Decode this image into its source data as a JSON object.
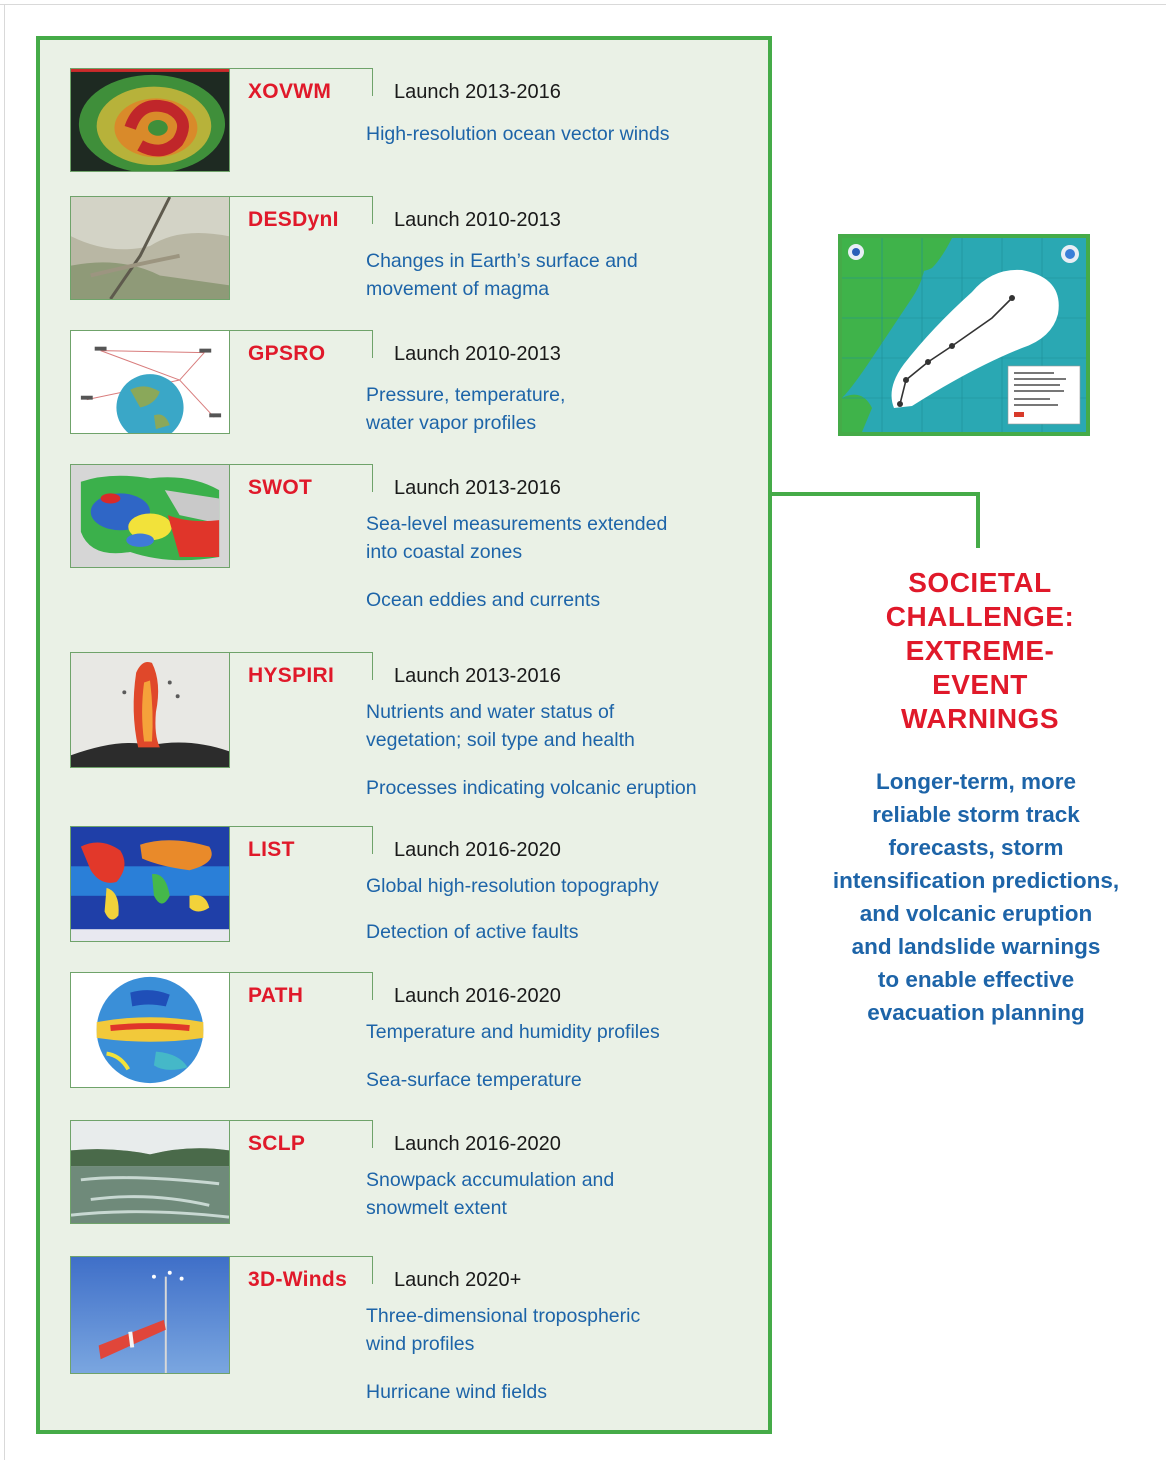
{
  "missions": [
    {
      "name": "XOVWM",
      "launch": "Launch 2013-2016",
      "descriptions": [
        [
          "High-resolution ocean vector winds"
        ]
      ],
      "image": "ocean-winds-satellite-image"
    },
    {
      "name": "DESDynI",
      "launch": "Launch 2010-2013",
      "descriptions": [
        [
          "Changes in Earth’s surface and",
          "movement of magma"
        ]
      ],
      "image": "fault-landscape-photo"
    },
    {
      "name": "GPSRO",
      "launch": "Launch 2010-2013",
      "descriptions": [
        [
          "Pressure, temperature,",
          "water vapor profiles"
        ]
      ],
      "image": "gps-satellites-globe-diagram"
    },
    {
      "name": "SWOT",
      "launch": "Launch 2013-2016",
      "descriptions": [
        [
          "Sea-level measurements extended",
          "into coastal zones"
        ],
        [
          "Ocean eddies and currents"
        ]
      ],
      "image": "sea-level-map"
    },
    {
      "name": "HYSPIRI",
      "launch": "Launch 2013-2016",
      "descriptions": [
        [
          "Nutrients and water status of",
          "vegetation; soil type and health"
        ],
        [
          "Processes indicating volcanic eruption"
        ]
      ],
      "image": "volcanic-eruption-photo"
    },
    {
      "name": "LIST",
      "launch": "Launch 2016-2020",
      "descriptions": [
        [
          "Global high-resolution topography"
        ],
        [
          "Detection of active faults"
        ]
      ],
      "image": "global-topography-map"
    },
    {
      "name": "PATH",
      "launch": "Launch 2016-2020",
      "descriptions": [
        [
          "Temperature and humidity profiles"
        ],
        [
          "Sea-surface temperature"
        ]
      ],
      "image": "sea-surface-temperature-globe"
    },
    {
      "name": "SCLP",
      "launch": "Launch 2016-2020",
      "descriptions": [
        [
          "Snowpack accumulation and",
          "snowmelt extent"
        ]
      ],
      "image": "snowmelt-river-photo"
    },
    {
      "name": "3D-Winds",
      "launch": "Launch 2020+",
      "descriptions": [
        [
          "Three-dimensional tropospheric",
          "wind profiles"
        ],
        [
          "Hurricane wind fields"
        ]
      ],
      "image": "windsock-photo"
    }
  ],
  "challenge": {
    "title_lines": [
      "SOCIETAL",
      "CHALLENGE:",
      "EXTREME-",
      "EVENT",
      "WARNINGS"
    ],
    "benefit_lines": [
      "Longer-term, more",
      "reliable storm track",
      "forecasts, storm",
      "intensification predictions,",
      "and volcanic eruption",
      "and landslide warnings",
      "to enable effective",
      "evacuation planning"
    ]
  },
  "colors": {
    "accent_green": "#45ab48",
    "mission_red": "#e0192a",
    "text_blue": "#1d64a8",
    "panel_bg": "#eaf1e6"
  },
  "map_image": "storm-track-forecast-map"
}
